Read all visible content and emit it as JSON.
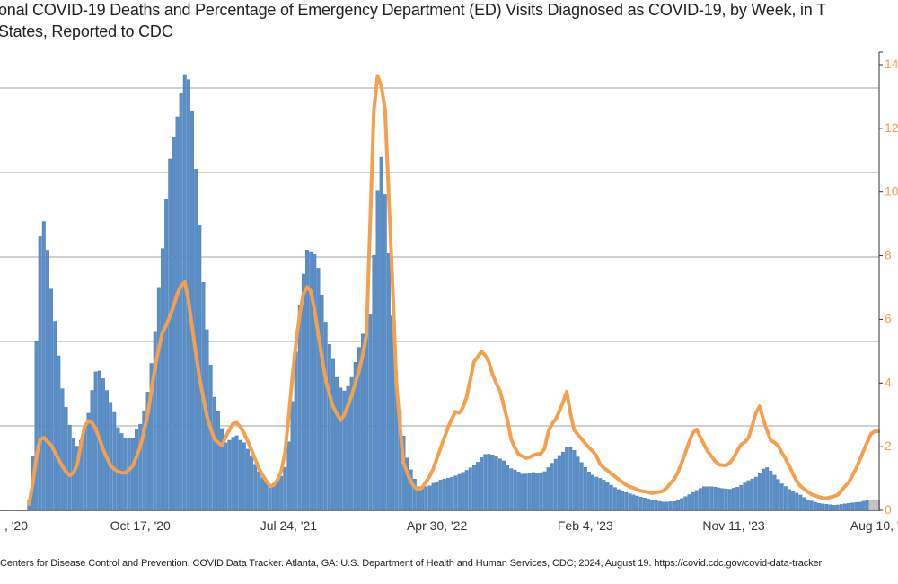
{
  "chart_data": {
    "type": "bar+line",
    "title_line1": "onal COVID-19 Deaths and Percentage of Emergency Department (ED) Visits Diagnosed as COVID-19, by Week, in T",
    "title_line2": "States, Reported to CDC",
    "weeks": {
      "first": "2020-03-21",
      "last": "2024-08-10",
      "interval_days": 7
    },
    "x_tick_labels": [
      {
        "label": ", '20",
        "week_index": -10
      },
      {
        "label": "Oct 17, '20",
        "week_index": 30
      },
      {
        "label": "Jul 24, '21",
        "week_index": 70
      },
      {
        "label": "Apr 30, '22",
        "week_index": 110
      },
      {
        "label": "Feb 4, '23",
        "week_index": 150
      },
      {
        "label": "Nov 11, '23",
        "week_index": 190
      },
      {
        "label": "Aug 10, '2",
        "week_index": 229
      }
    ],
    "y_left": {
      "range": [
        0,
        25000
      ],
      "gridlines": [
        5000,
        10000,
        15000,
        20000,
        25000
      ],
      "tick_labels_visible": false
    },
    "y_right": {
      "range": [
        0,
        14
      ],
      "ticks": [
        "0",
        "2",
        "4",
        "6",
        "8",
        "10",
        "12",
        "14"
      ],
      "color": "#f0a050"
    },
    "grid": true,
    "series": [
      {
        "kind": "bar",
        "axis": "left",
        "color": "#5b8fc7",
        "incomplete_color": "#c4c4c4",
        "incomplete_last_weeks": 3,
        "values": [
          600,
          3200,
          10000,
          16200,
          17100,
          15400,
          13100,
          11200,
          9150,
          7200,
          6100,
          5050,
          4250,
          3800,
          4150,
          4950,
          5750,
          7100,
          8200,
          8250,
          7800,
          7100,
          6400,
          5800,
          4900,
          4550,
          4300,
          4300,
          4250,
          4800,
          5100,
          5900,
          7000,
          8700,
          10600,
          13200,
          15500,
          18400,
          20800,
          22100,
          23300,
          24700,
          25800,
          25500,
          23600,
          20200,
          16900,
          13500,
          10700,
          8600,
          6700,
          5850,
          4850,
          4000,
          4150,
          4330,
          4420,
          4150,
          4000,
          3620,
          3170,
          2730,
          2290,
          1930,
          1670,
          1490,
          1580,
          1850,
          2020,
          2550,
          4060,
          6450,
          9380,
          12130,
          13990,
          15410,
          15320,
          15140,
          14340,
          12750,
          11150,
          9830,
          8940,
          7870,
          7250,
          7070,
          7340,
          7870,
          8760,
          9650,
          10440,
          10900,
          11600,
          15100,
          18900,
          20900,
          18700,
          15200,
          11500,
          8200,
          5900,
          4400,
          3100,
          2400,
          1850,
          1400,
          1350,
          1400,
          1450,
          1600,
          1700,
          1800,
          1850,
          1900,
          1960,
          2040,
          2130,
          2250,
          2370,
          2520,
          2650,
          2850,
          3120,
          3310,
          3330,
          3280,
          3170,
          3050,
          2930,
          2690,
          2470,
          2390,
          2270,
          2140,
          2150,
          2210,
          2240,
          2210,
          2230,
          2290,
          2530,
          2790,
          3030,
          3250,
          3450,
          3730,
          3760,
          3550,
          3160,
          2830,
          2540,
          2270,
          2090,
          1970,
          1890,
          1790,
          1660,
          1490,
          1350,
          1230,
          1140,
          1060,
          980,
          920,
          850,
          790,
          730,
          670,
          610,
          570,
          530,
          490,
          490,
          510,
          520,
          580,
          700,
          810,
          930,
          1060,
          1180,
          1300,
          1400,
          1400,
          1400,
          1370,
          1330,
          1290,
          1270,
          1250,
          1310,
          1370,
          1480,
          1620,
          1760,
          1860,
          1970,
          2190,
          2450,
          2530,
          2330,
          2080,
          1830,
          1570,
          1410,
          1240,
          1120,
          1020,
          910,
          760,
          610,
          550,
          480,
          420,
          380,
          360,
          330,
          310,
          320,
          350,
          380,
          410,
          440,
          460,
          480,
          540,
          600,
          620,
          640,
          600
        ]
      },
      {
        "kind": "line",
        "axis": "right",
        "color": "#f5a04f",
        "values": [
          0.2,
          0.8,
          1.7,
          2.23,
          2.28,
          2.16,
          2.05,
          1.82,
          1.6,
          1.39,
          1.2,
          1.1,
          1.19,
          1.44,
          2.07,
          2.65,
          2.81,
          2.75,
          2.56,
          2.24,
          1.91,
          1.65,
          1.4,
          1.3,
          1.21,
          1.18,
          1.18,
          1.28,
          1.4,
          1.69,
          1.99,
          2.48,
          3.02,
          3.77,
          4.5,
          5.09,
          5.6,
          5.81,
          6.1,
          6.43,
          6.8,
          7.06,
          7.17,
          6.57,
          5.75,
          4.93,
          4.15,
          3.54,
          2.95,
          2.56,
          2.23,
          2.13,
          2.03,
          2.3,
          2.52,
          2.72,
          2.75,
          2.62,
          2.43,
          2.16,
          1.89,
          1.6,
          1.31,
          1.1,
          0.92,
          0.75,
          0.8,
          0.95,
          1.22,
          1.8,
          2.92,
          4.16,
          5.28,
          6.17,
          6.8,
          7.02,
          6.88,
          6.3,
          5.54,
          4.8,
          4.1,
          3.65,
          3.25,
          3.04,
          2.83,
          3.0,
          3.29,
          3.61,
          4.0,
          4.39,
          4.9,
          5.5,
          9.1,
          12.6,
          13.65,
          13.33,
          12.6,
          9.9,
          7.2,
          4.1,
          2.67,
          1.5,
          1.17,
          0.89,
          0.72,
          0.65,
          0.71,
          0.89,
          1.06,
          1.31,
          1.64,
          1.96,
          2.29,
          2.61,
          2.87,
          3.1,
          3.06,
          3.23,
          3.56,
          4.12,
          4.67,
          4.82,
          4.99,
          4.87,
          4.66,
          4.27,
          3.99,
          3.75,
          3.3,
          2.84,
          2.24,
          1.97,
          1.76,
          1.7,
          1.64,
          1.67,
          1.73,
          1.77,
          1.77,
          1.94,
          2.46,
          2.71,
          2.86,
          3.11,
          3.4,
          3.73,
          3.04,
          2.53,
          2.38,
          2.24,
          2.1,
          1.97,
          1.86,
          1.71,
          1.45,
          1.33,
          1.25,
          1.15,
          1.06,
          0.97,
          0.88,
          0.8,
          0.74,
          0.7,
          0.65,
          0.61,
          0.59,
          0.57,
          0.54,
          0.56,
          0.58,
          0.61,
          0.71,
          0.85,
          0.98,
          1.2,
          1.5,
          1.81,
          2.15,
          2.44,
          2.54,
          2.3,
          2.07,
          1.85,
          1.7,
          1.55,
          1.44,
          1.42,
          1.41,
          1.5,
          1.65,
          1.87,
          2.07,
          2.14,
          2.28,
          2.65,
          3.06,
          3.27,
          2.86,
          2.5,
          2.2,
          2.13,
          2.03,
          1.81,
          1.62,
          1.4,
          1.14,
          0.91,
          0.76,
          0.67,
          0.58,
          0.5,
          0.46,
          0.42,
          0.39,
          0.38,
          0.41,
          0.44,
          0.48,
          0.61,
          0.75,
          0.88,
          1.09,
          1.31,
          1.59,
          1.86,
          2.14,
          2.4,
          2.48,
          2.48
        ]
      }
    ],
    "source": "Centers for Disease Control and Prevention. COVID Data Tracker. Atlanta, GA: U.S. Department of Health and Human Services, CDC; 2024, August 19. https://covid.cdc.gov/covid-data-tracker"
  }
}
